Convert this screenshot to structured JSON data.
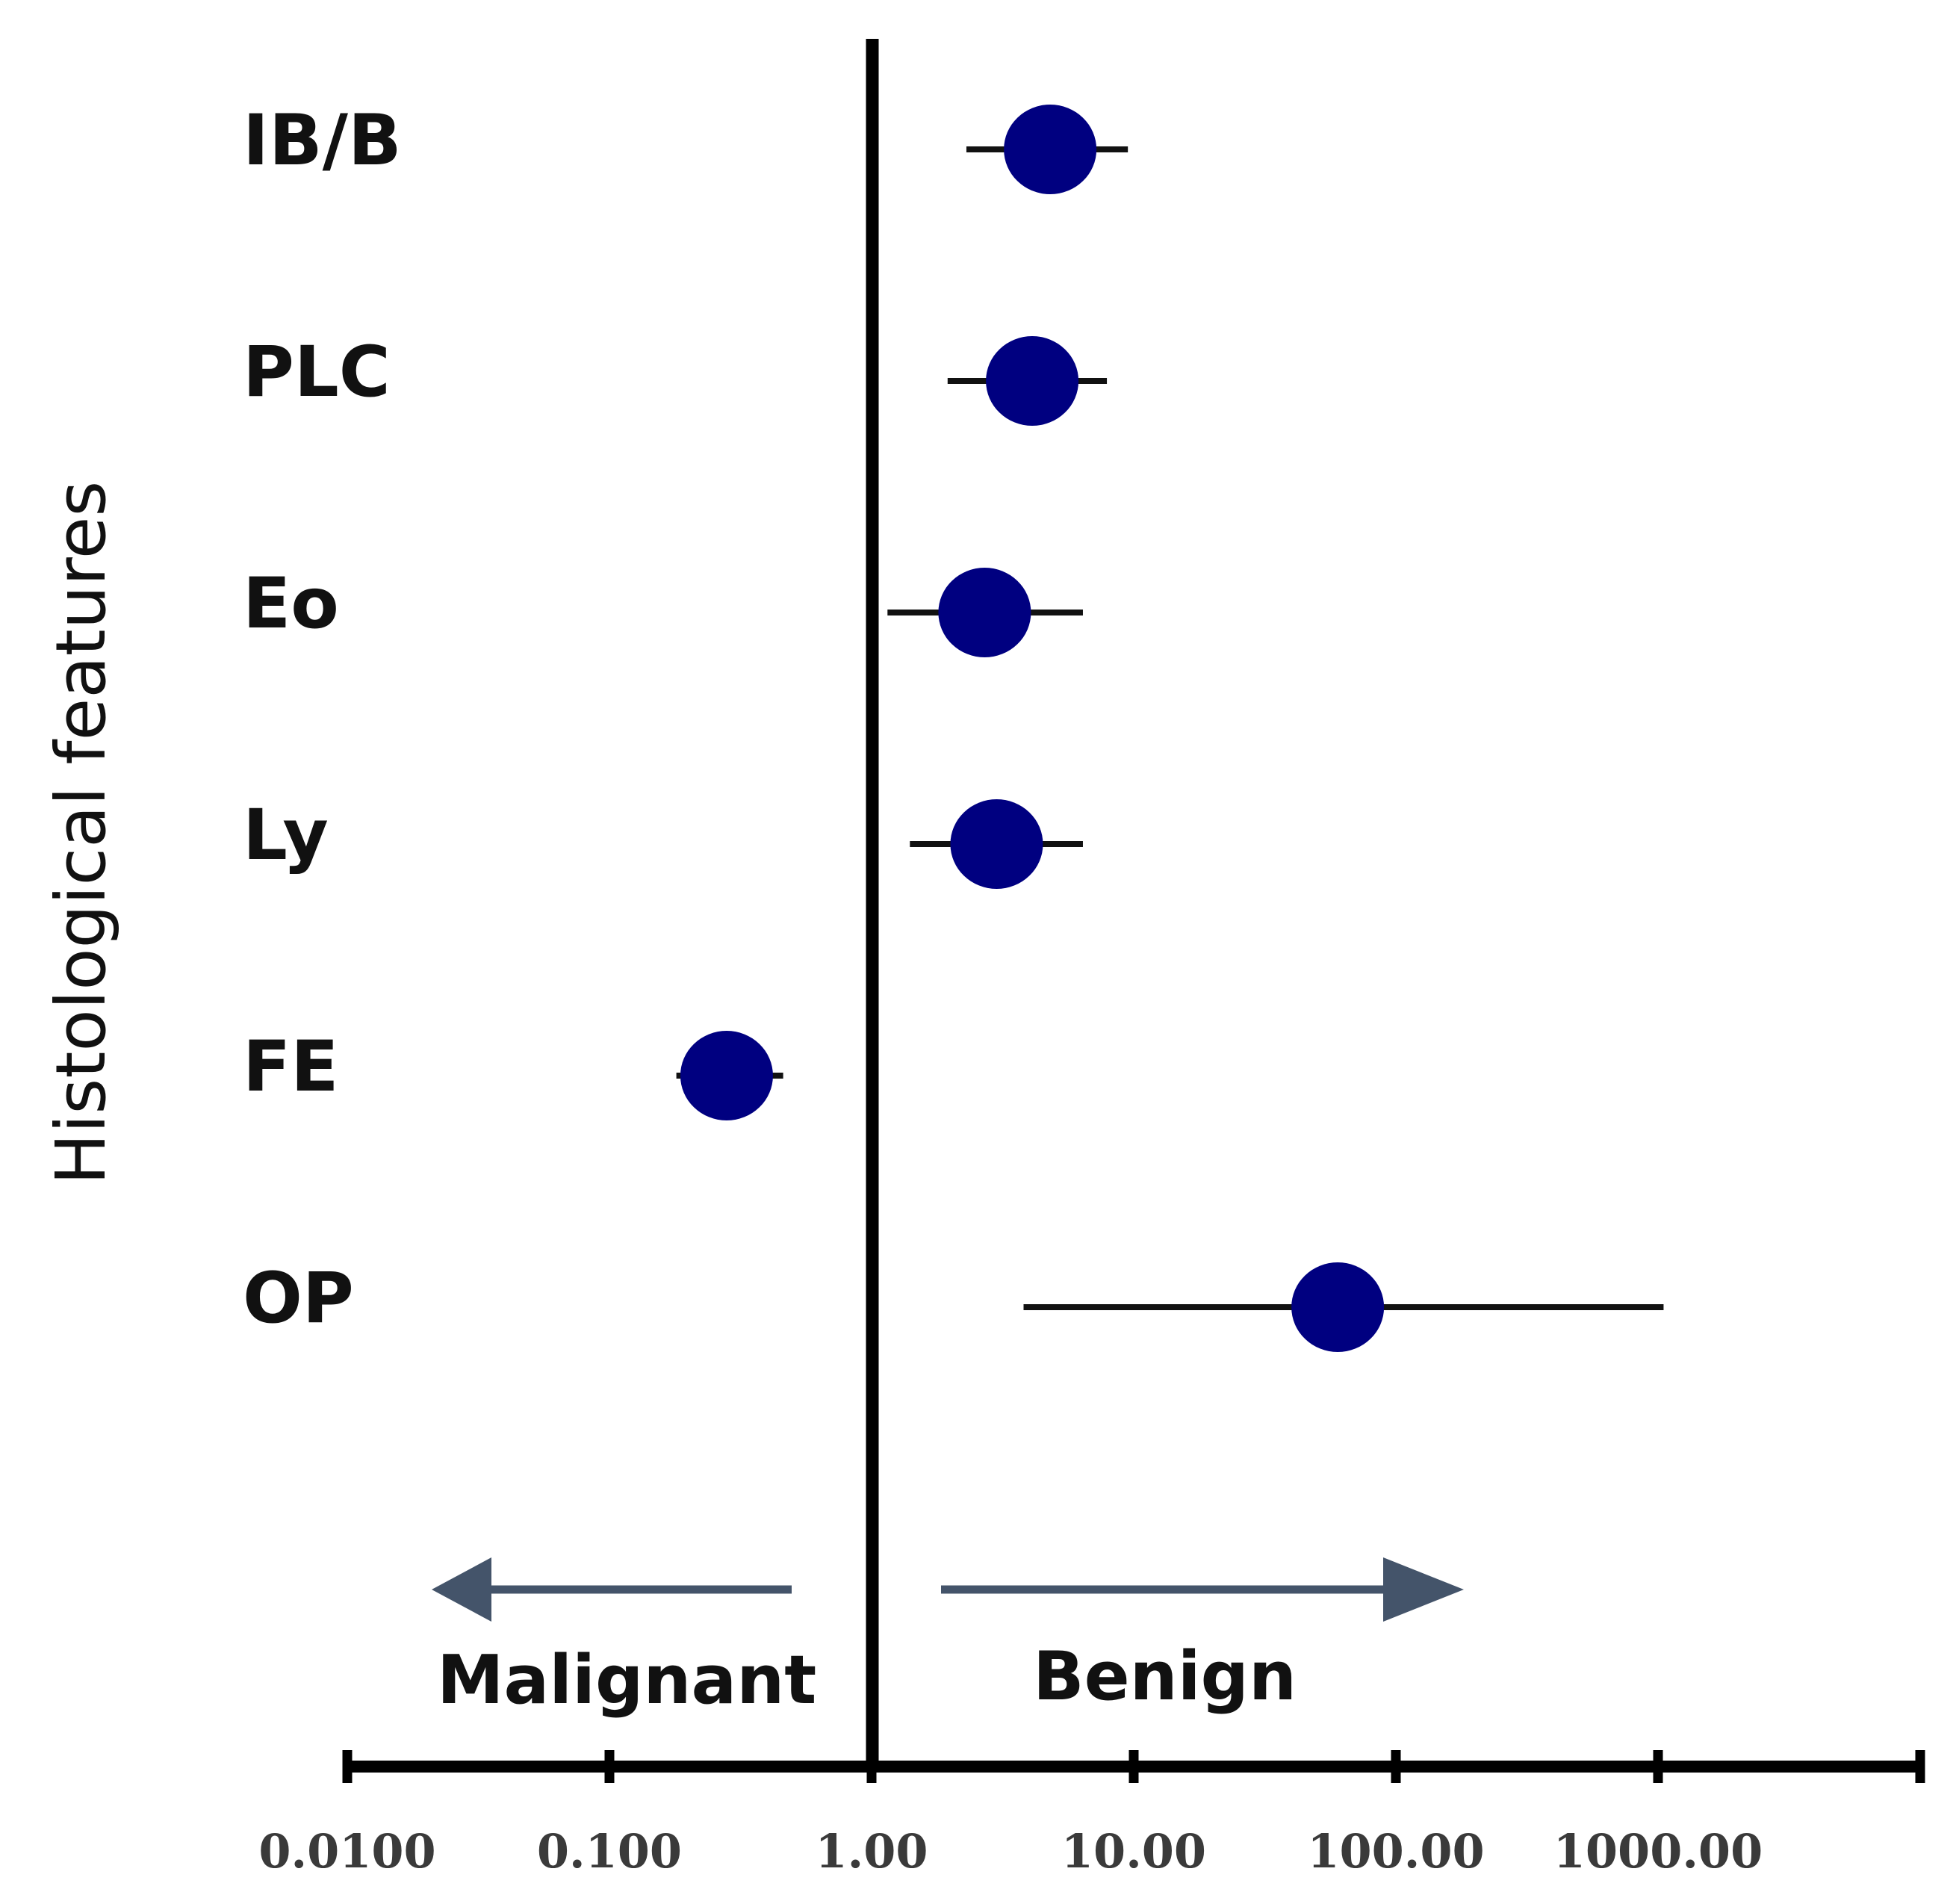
{
  "chart_data": {
    "type": "scatter",
    "subtype": "forest-plot",
    "title": "",
    "xlabel": "",
    "ylabel": "Histological features",
    "x_scale": "log",
    "xlim": [
      0.01,
      10000
    ],
    "reference_value": 1.0,
    "x_ticks": [
      {
        "value": 0.01,
        "label": "0.0100"
      },
      {
        "value": 0.1,
        "label": "0.100"
      },
      {
        "value": 1,
        "label": "1.00"
      },
      {
        "value": 10,
        "label": "10.00"
      },
      {
        "value": 100,
        "label": "100.00"
      },
      {
        "value": 1000,
        "label": "1000.00"
      },
      {
        "value": 10000,
        "label": ""
      }
    ],
    "rows": [
      {
        "label": "IB/B",
        "estimate": 4.8,
        "lower": 2.3,
        "upper": 9.5
      },
      {
        "label": "PLC",
        "estimate": 4.1,
        "lower": 1.95,
        "upper": 7.9
      },
      {
        "label": "Eo",
        "estimate": 2.7,
        "lower": 1.15,
        "upper": 6.4
      },
      {
        "label": "Ly",
        "estimate": 3.0,
        "lower": 1.4,
        "upper": 6.4
      },
      {
        "label": "FE",
        "estimate": 0.28,
        "lower": 0.18,
        "upper": 0.46
      },
      {
        "label": "OP",
        "estimate": 60,
        "lower": 3.8,
        "upper": 1050
      }
    ],
    "annotations": {
      "left": "Malignant",
      "right": "Benign"
    },
    "colors": {
      "marker": "#000080",
      "whisker": "#111111",
      "axis": "#000000",
      "arrow": "#44546a"
    }
  }
}
